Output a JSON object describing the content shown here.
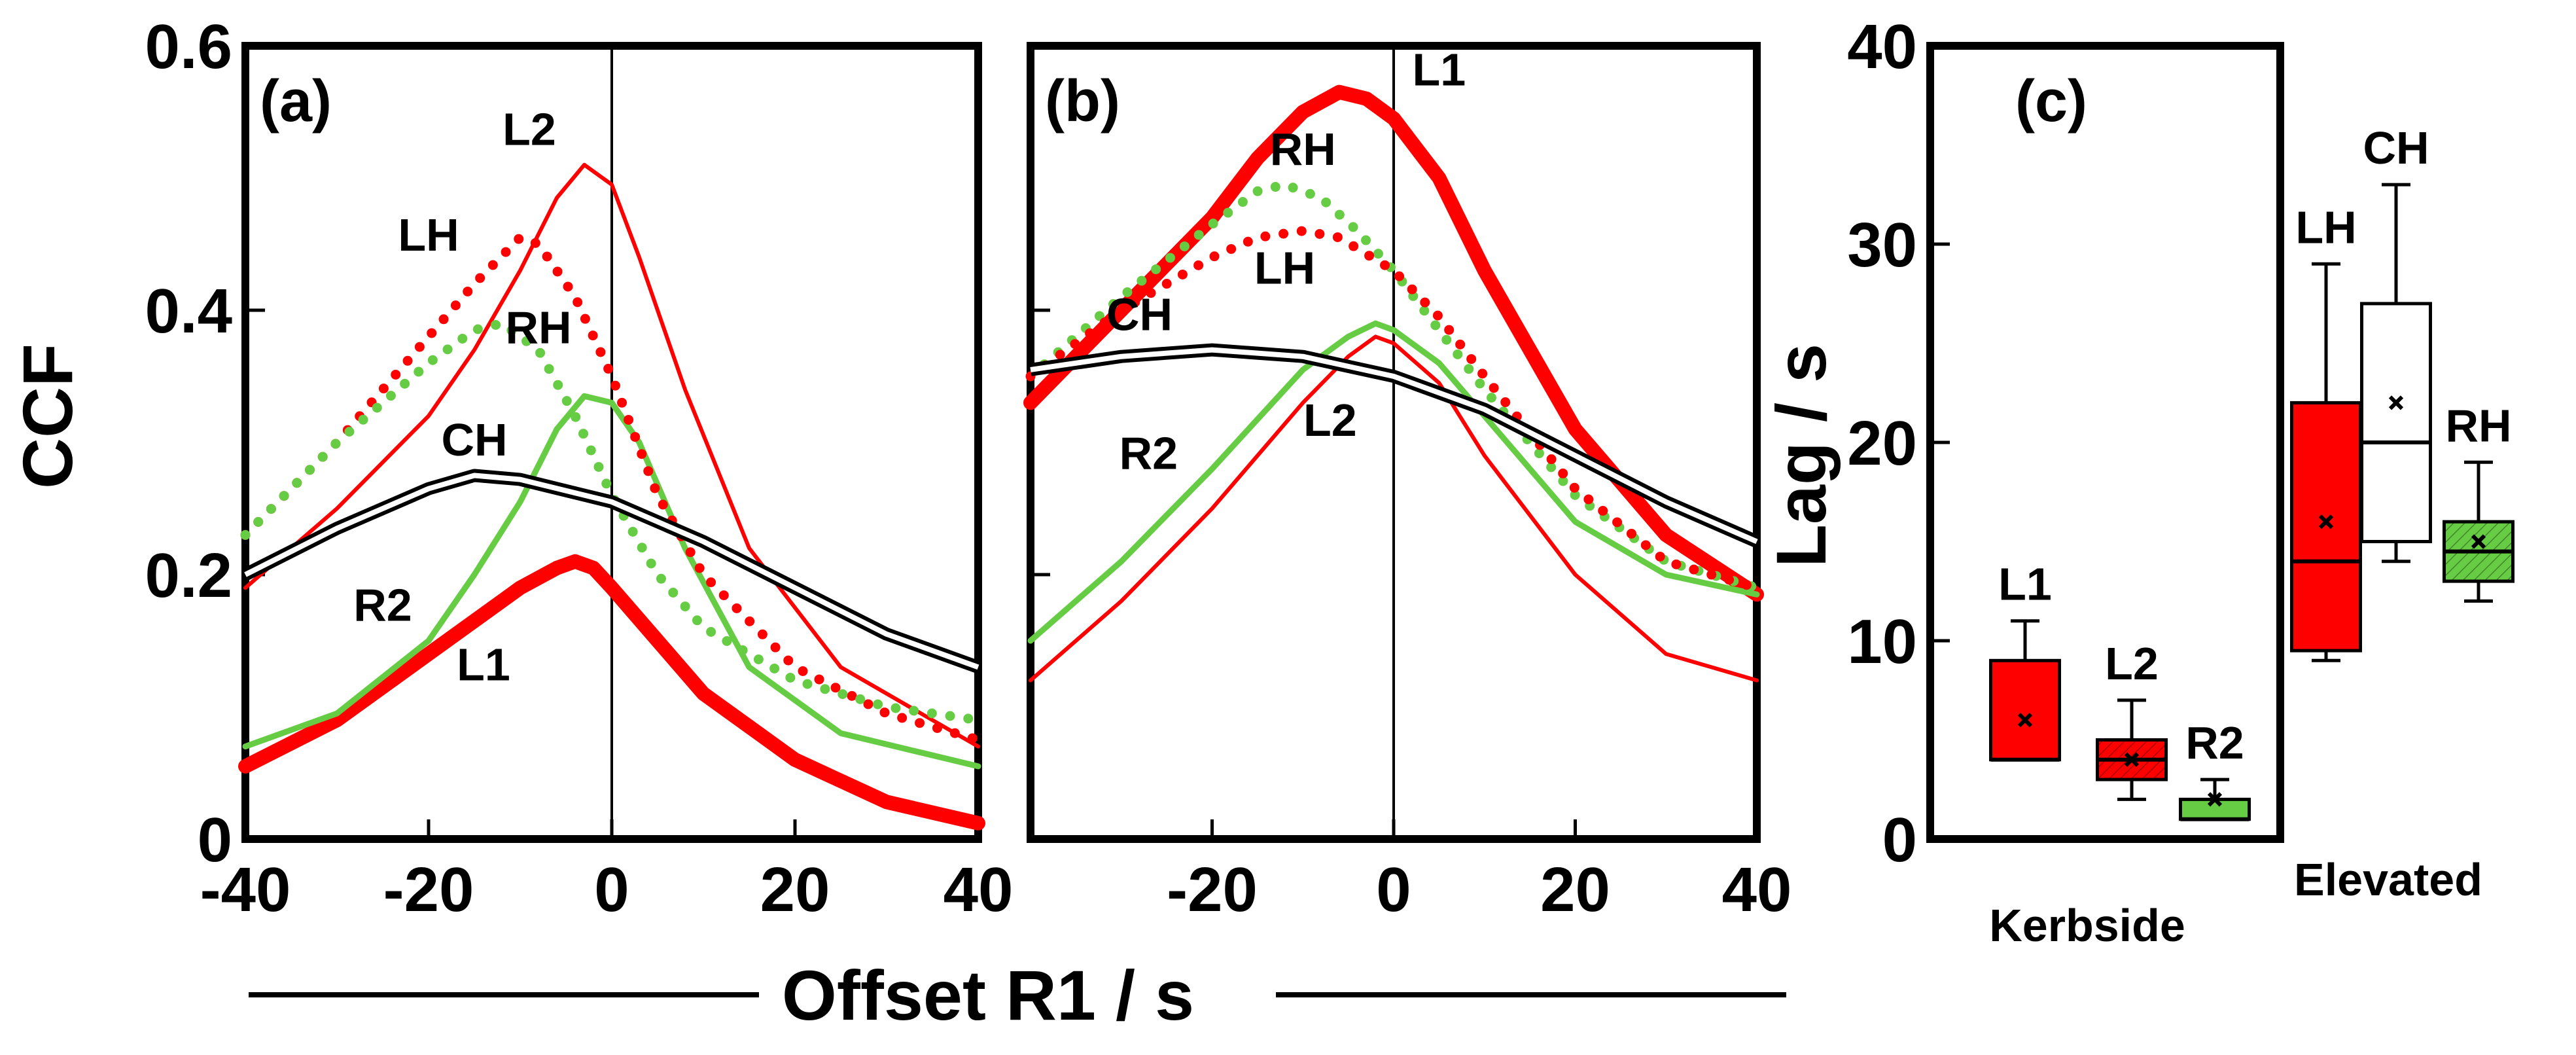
{
  "shared": {
    "xlabel": "Offset R1 / s"
  },
  "chart_data": [
    {
      "type": "line",
      "panel_label": "(a)",
      "ylabel": "CCF",
      "xlim": [
        -40,
        40
      ],
      "ylim": [
        0,
        0.6
      ],
      "xticks": [
        "-40",
        "-20",
        "0",
        "20",
        "40"
      ],
      "yticks": [
        "0",
        "0.2",
        "0.4",
        "0.6"
      ],
      "series": [
        {
          "name": "L1",
          "color": "#ff0000",
          "style": "thick",
          "label_at": [
            -14,
            0.12
          ],
          "points": [
            [
              -40,
              0.055
            ],
            [
              -30,
              0.09
            ],
            [
              -20,
              0.14
            ],
            [
              -10,
              0.19
            ],
            [
              -6,
              0.205
            ],
            [
              -4,
              0.21
            ],
            [
              -2,
              0.205
            ],
            [
              0,
              0.19
            ],
            [
              5,
              0.15
            ],
            [
              10,
              0.11
            ],
            [
              20,
              0.06
            ],
            [
              30,
              0.028
            ],
            [
              40,
              0.012
            ]
          ]
        },
        {
          "name": "L2",
          "color": "#ff0000",
          "style": "thin",
          "label_at": [
            -9,
            0.525
          ],
          "points": [
            [
              -40,
              0.19
            ],
            [
              -30,
              0.25
            ],
            [
              -20,
              0.32
            ],
            [
              -15,
              0.37
            ],
            [
              -10,
              0.43
            ],
            [
              -6,
              0.485
            ],
            [
              -3,
              0.51
            ],
            [
              0,
              0.495
            ],
            [
              3,
              0.44
            ],
            [
              8,
              0.34
            ],
            [
              15,
              0.22
            ],
            [
              25,
              0.13
            ],
            [
              40,
              0.07
            ]
          ]
        },
        {
          "name": "R2",
          "color": "#66cc44",
          "style": "solid",
          "label_at": [
            -25,
            0.165
          ],
          "points": [
            [
              -40,
              0.07
            ],
            [
              -30,
              0.095
            ],
            [
              -20,
              0.15
            ],
            [
              -15,
              0.2
            ],
            [
              -10,
              0.255
            ],
            [
              -6,
              0.31
            ],
            [
              -3,
              0.335
            ],
            [
              0,
              0.33
            ],
            [
              3,
              0.3
            ],
            [
              8,
              0.22
            ],
            [
              15,
              0.13
            ],
            [
              25,
              0.08
            ],
            [
              40,
              0.055
            ]
          ]
        },
        {
          "name": "LH",
          "color": "#ff0000",
          "style": "dotted",
          "label_at": [
            -20,
            0.445
          ],
          "points": [
            [
              -40,
              0.23
            ],
            [
              -30,
              0.3
            ],
            [
              -20,
              0.38
            ],
            [
              -15,
              0.42
            ],
            [
              -10,
              0.455
            ],
            [
              -8,
              0.45
            ],
            [
              -4,
              0.41
            ],
            [
              0,
              0.35
            ],
            [
              5,
              0.26
            ],
            [
              10,
              0.2
            ],
            [
              20,
              0.13
            ],
            [
              30,
              0.095
            ],
            [
              40,
              0.075
            ]
          ]
        },
        {
          "name": "RH",
          "color": "#66cc44",
          "style": "dotted",
          "label_at": [
            -8,
            0.375
          ],
          "points": [
            [
              -40,
              0.23
            ],
            [
              -30,
              0.3
            ],
            [
              -20,
              0.36
            ],
            [
              -15,
              0.385
            ],
            [
              -12,
              0.39
            ],
            [
              -8,
              0.37
            ],
            [
              -4,
              0.32
            ],
            [
              0,
              0.26
            ],
            [
              5,
              0.2
            ],
            [
              10,
              0.16
            ],
            [
              20,
              0.12
            ],
            [
              30,
              0.1
            ],
            [
              40,
              0.09
            ]
          ]
        },
        {
          "name": "CH",
          "color": "#000000",
          "style": "double",
          "label_at": [
            -15,
            0.29
          ],
          "points": [
            [
              -40,
              0.2
            ],
            [
              -30,
              0.235
            ],
            [
              -20,
              0.265
            ],
            [
              -15,
              0.275
            ],
            [
              -10,
              0.272
            ],
            [
              0,
              0.255
            ],
            [
              10,
              0.225
            ],
            [
              20,
              0.19
            ],
            [
              30,
              0.155
            ],
            [
              40,
              0.13
            ]
          ]
        }
      ]
    },
    {
      "type": "line",
      "panel_label": "(b)",
      "xlim": [
        -40,
        40
      ],
      "ylim": [
        0,
        0.6
      ],
      "xticks": [
        "-20",
        "0",
        "20",
        "40"
      ],
      "yticks": [],
      "series": [
        {
          "name": "L1",
          "color": "#ff0000",
          "style": "thick",
          "label_at": [
            5,
            0.57
          ],
          "points": [
            [
              -40,
              0.33
            ],
            [
              -30,
              0.4
            ],
            [
              -20,
              0.47
            ],
            [
              -15,
              0.515
            ],
            [
              -10,
              0.55
            ],
            [
              -6,
              0.565
            ],
            [
              -3,
              0.56
            ],
            [
              0,
              0.545
            ],
            [
              5,
              0.5
            ],
            [
              10,
              0.43
            ],
            [
              20,
              0.31
            ],
            [
              30,
              0.23
            ],
            [
              40,
              0.185
            ]
          ]
        },
        {
          "name": "L2",
          "color": "#ff0000",
          "style": "thin",
          "label_at": [
            -7,
            0.305
          ],
          "points": [
            [
              -40,
              0.12
            ],
            [
              -30,
              0.18
            ],
            [
              -20,
              0.25
            ],
            [
              -10,
              0.33
            ],
            [
              -5,
              0.365
            ],
            [
              -2,
              0.38
            ],
            [
              0,
              0.375
            ],
            [
              5,
              0.345
            ],
            [
              10,
              0.29
            ],
            [
              20,
              0.2
            ],
            [
              30,
              0.14
            ],
            [
              40,
              0.12
            ]
          ]
        },
        {
          "name": "R2",
          "color": "#66cc44",
          "style": "solid",
          "label_at": [
            -27,
            0.28
          ],
          "points": [
            [
              -40,
              0.15
            ],
            [
              -30,
              0.21
            ],
            [
              -20,
              0.28
            ],
            [
              -10,
              0.355
            ],
            [
              -5,
              0.38
            ],
            [
              -2,
              0.39
            ],
            [
              0,
              0.385
            ],
            [
              5,
              0.36
            ],
            [
              10,
              0.32
            ],
            [
              20,
              0.24
            ],
            [
              30,
              0.2
            ],
            [
              40,
              0.185
            ]
          ]
        },
        {
          "name": "RH",
          "color": "#66cc44",
          "style": "dotted",
          "label_at": [
            -10,
            0.51
          ],
          "points": [
            [
              -40,
              0.35
            ],
            [
              -30,
              0.41
            ],
            [
              -20,
              0.465
            ],
            [
              -15,
              0.49
            ],
            [
              -12,
              0.495
            ],
            [
              -8,
              0.485
            ],
            [
              -4,
              0.46
            ],
            [
              0,
              0.43
            ],
            [
              5,
              0.385
            ],
            [
              10,
              0.34
            ],
            [
              20,
              0.26
            ],
            [
              30,
              0.21
            ],
            [
              40,
              0.19
            ]
          ]
        },
        {
          "name": "LH",
          "color": "#ff0000",
          "style": "dotted",
          "label_at": [
            -12,
            0.42
          ],
          "points": [
            [
              -40,
              0.35
            ],
            [
              -30,
              0.4
            ],
            [
              -20,
              0.44
            ],
            [
              -15,
              0.455
            ],
            [
              -10,
              0.46
            ],
            [
              -6,
              0.455
            ],
            [
              0,
              0.43
            ],
            [
              5,
              0.395
            ],
            [
              10,
              0.35
            ],
            [
              20,
              0.265
            ],
            [
              30,
              0.21
            ],
            [
              40,
              0.19
            ]
          ]
        },
        {
          "name": "CH",
          "color": "#000000",
          "style": "double",
          "label_at": [
            -28,
            0.385
          ],
          "points": [
            [
              -40,
              0.355
            ],
            [
              -30,
              0.365
            ],
            [
              -20,
              0.37
            ],
            [
              -10,
              0.365
            ],
            [
              0,
              0.35
            ],
            [
              10,
              0.325
            ],
            [
              20,
              0.29
            ],
            [
              30,
              0.255
            ],
            [
              40,
              0.225
            ]
          ]
        }
      ]
    },
    {
      "type": "box",
      "panel_label": "(c)",
      "ylabel": "Lag / s",
      "ylim": [
        0,
        40
      ],
      "yticks": [
        "0",
        "10",
        "20",
        "30",
        "40"
      ],
      "groups": [
        "Kerbside",
        "Elevated"
      ],
      "boxes": [
        {
          "name": "L1",
          "group": "Kerbside",
          "color": "#ff0000",
          "hatched": false,
          "whisker_low": 4,
          "q1": 4,
          "median": 4,
          "q3": 9,
          "whisker_high": 11,
          "mean": 6
        },
        {
          "name": "L2",
          "group": "Kerbside",
          "color": "#ff0000",
          "hatched": true,
          "whisker_low": 2,
          "q1": 3,
          "median": 4,
          "q3": 5,
          "whisker_high": 7,
          "mean": 4
        },
        {
          "name": "R2",
          "group": "Kerbside",
          "color": "#66cc44",
          "hatched": false,
          "whisker_low": 1,
          "q1": 1,
          "median": 1,
          "q3": 2,
          "whisker_high": 3,
          "mean": 2
        },
        {
          "name": "LH",
          "group": "Elevated",
          "color": "#ff0000",
          "hatched": false,
          "whisker_low": 9,
          "q1": 9.5,
          "median": 14,
          "q3": 22,
          "whisker_high": 29,
          "mean": 16
        },
        {
          "name": "CH",
          "group": "Elevated",
          "color": "#ffffff",
          "hatched": false,
          "whisker_low": 14,
          "q1": 15,
          "median": 20,
          "q3": 27,
          "whisker_high": 33,
          "mean": 22
        },
        {
          "name": "RH",
          "group": "Elevated",
          "color": "#66cc44",
          "hatched": true,
          "whisker_low": 12,
          "q1": 13,
          "median": 14.5,
          "q3": 16,
          "whisker_high": 19,
          "mean": 15
        }
      ]
    }
  ]
}
